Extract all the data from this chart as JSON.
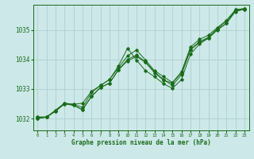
{
  "background_color": "#cce8e8",
  "grid_color": "#b0d0d0",
  "line_color": "#1a6b1a",
  "xlabel": "Graphe pression niveau de la mer (hPa)",
  "xlim": [
    -0.5,
    23.5
  ],
  "ylim": [
    1031.6,
    1035.85
  ],
  "yticks": [
    1032,
    1033,
    1034,
    1035
  ],
  "xticks": [
    0,
    1,
    2,
    3,
    4,
    5,
    6,
    7,
    8,
    9,
    10,
    11,
    12,
    13,
    14,
    15,
    16,
    17,
    18,
    19,
    20,
    21,
    22,
    23
  ],
  "series": [
    [
      1032.0,
      1032.05,
      1032.25,
      1032.5,
      1032.45,
      1032.3,
      1032.75,
      1033.05,
      1033.2,
      1033.65,
      1033.95,
      1034.1,
      1033.9,
      1033.55,
      1033.3,
      1033.2,
      1033.55,
      1034.35,
      1034.6,
      1034.75,
      1035.05,
      1035.3,
      1035.65,
      1035.7
    ],
    [
      1032.0,
      1032.05,
      1032.25,
      1032.5,
      1032.45,
      1032.3,
      1032.75,
      1033.05,
      1033.2,
      1033.65,
      1034.0,
      1034.15,
      1033.92,
      1033.58,
      1033.32,
      1033.12,
      1033.48,
      1034.32,
      1034.58,
      1034.72,
      1035.0,
      1035.22,
      1035.62,
      1035.7
    ],
    [
      1032.05,
      1032.05,
      1032.28,
      1032.52,
      1032.48,
      1032.38,
      1032.88,
      1033.12,
      1033.32,
      1033.72,
      1034.12,
      1034.32,
      1033.98,
      1033.62,
      1033.42,
      1033.22,
      1033.58,
      1034.42,
      1034.68,
      1034.82,
      1035.08,
      1035.32,
      1035.68,
      1035.72
    ],
    [
      1032.05,
      1032.05,
      1032.28,
      1032.52,
      1032.48,
      1032.52,
      1032.92,
      1033.12,
      1033.32,
      1033.78,
      1034.38,
      1033.98,
      1033.62,
      1033.42,
      1033.18,
      1033.02,
      1033.32,
      1034.18,
      1034.52,
      1034.72,
      1035.02,
      1035.22,
      1035.68,
      1035.72
    ]
  ]
}
